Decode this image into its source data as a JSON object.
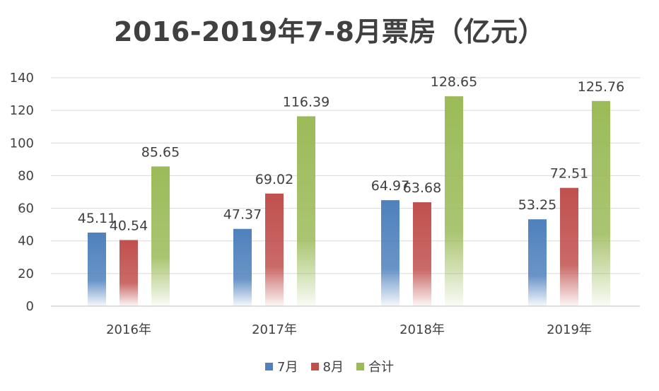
{
  "chart_data": {
    "type": "bar",
    "title": "2016-2019年7-8月票房（亿元）",
    "categories": [
      "2016年",
      "2017年",
      "2018年",
      "2019年"
    ],
    "series": [
      {
        "name": "7月",
        "values": [
          45.11,
          47.37,
          64.97,
          53.25
        ],
        "color": "#4f81bd"
      },
      {
        "name": "8月",
        "values": [
          40.54,
          69.02,
          63.68,
          72.51
        ],
        "color": "#c0504d"
      },
      {
        "name": "合计",
        "values": [
          85.65,
          116.39,
          128.65,
          125.76
        ],
        "color": "#9bbb59"
      }
    ],
    "data_labels": [
      [
        "45.11",
        "47.37",
        "64.97",
        "53.25"
      ],
      [
        "40.54",
        "69.02",
        "63.68",
        "72.51"
      ],
      [
        "85.65",
        "116.39",
        "128.65",
        "125.76"
      ]
    ],
    "ylim": [
      0,
      140
    ],
    "yticks": [
      0,
      20,
      40,
      60,
      80,
      100,
      120,
      140
    ],
    "ytick_labels": [
      "0",
      "20",
      "40",
      "60",
      "80",
      "100",
      "120",
      "140"
    ],
    "grid": true,
    "legend_position": "bottom"
  }
}
